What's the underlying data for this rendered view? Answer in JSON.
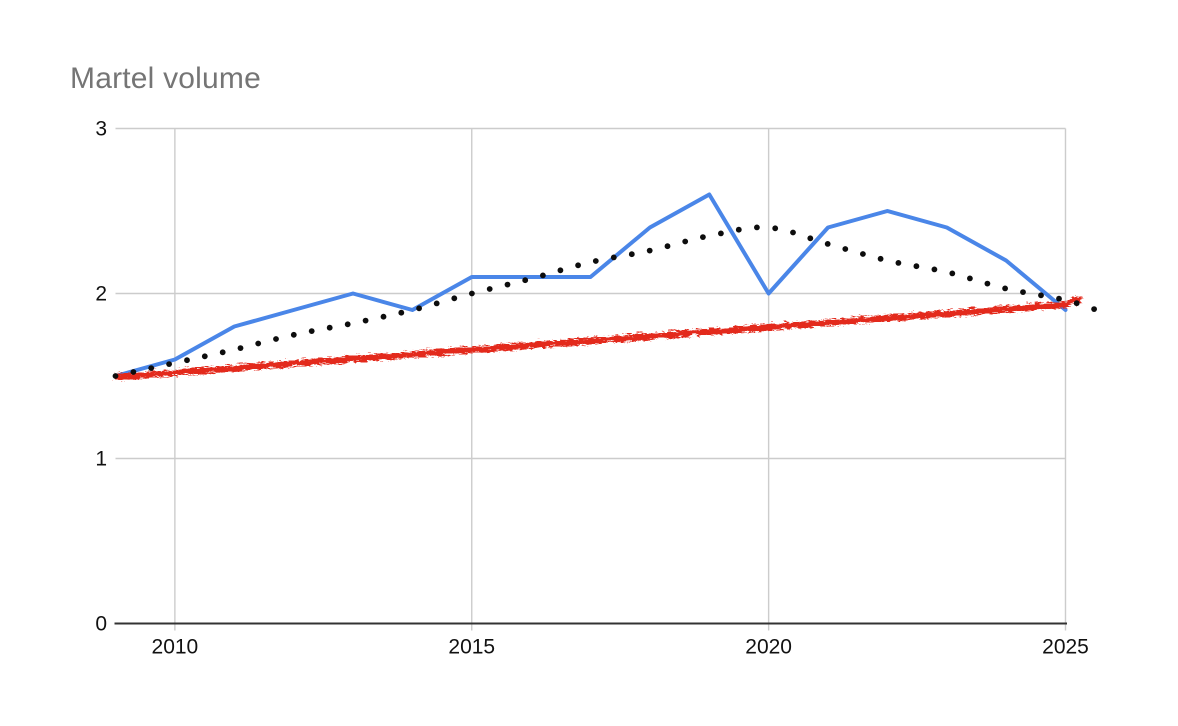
{
  "page": {
    "background": "#ffffff"
  },
  "chart_data": {
    "type": "line",
    "title": "Martel volume",
    "title_color": "#757575",
    "xlabel": "",
    "ylabel": "",
    "x": [
      2009,
      2010,
      2011,
      2012,
      2013,
      2014,
      2015,
      2016,
      2017,
      2018,
      2019,
      2020,
      2021,
      2022,
      2023,
      2024,
      2025
    ],
    "series": [
      {
        "name": "volume",
        "style": "solid",
        "color": "#4a86e8",
        "values": [
          1.5,
          1.6,
          1.8,
          1.9,
          2.0,
          1.9,
          2.1,
          2.1,
          2.1,
          2.4,
          2.6,
          2.0,
          2.4,
          2.5,
          2.4,
          2.2,
          1.9
        ]
      },
      {
        "name": "linear-trend-marker",
        "style": "rough-marker",
        "color": "#e3291d",
        "points": [
          [
            2009,
            1.5
          ],
          [
            2025.0,
            1.94
          ],
          [
            2025.2,
            1.97
          ]
        ]
      },
      {
        "name": "dotted-trend",
        "style": "dotted",
        "color": "#0d0d0d",
        "points": [
          [
            2009,
            1.5
          ],
          [
            2010,
            1.58
          ],
          [
            2011,
            1.66
          ],
          [
            2012,
            1.75
          ],
          [
            2013,
            1.82
          ],
          [
            2014,
            1.9
          ],
          [
            2015,
            2.0
          ],
          [
            2016,
            2.09
          ],
          [
            2017,
            2.19
          ],
          [
            2018,
            2.26
          ],
          [
            2019,
            2.35
          ],
          [
            2020,
            2.4
          ],
          [
            2021,
            2.3
          ],
          [
            2022,
            2.2
          ],
          [
            2023,
            2.13
          ],
          [
            2024,
            2.03
          ],
          [
            2025,
            1.96
          ],
          [
            2025.6,
            1.89
          ]
        ]
      }
    ],
    "x_ticks": [
      "2010",
      "2015",
      "2020",
      "2025"
    ],
    "x_tick_years": [
      2010,
      2015,
      2020,
      2025
    ],
    "y_ticks": [
      "0",
      "1",
      "2",
      "3"
    ],
    "y_tick_values": [
      0,
      1,
      2,
      3
    ],
    "xlim": [
      2009,
      2025
    ],
    "ylim": [
      0,
      3
    ],
    "grid": true,
    "legend": "none",
    "colors": {
      "gridline": "#cccccc",
      "axis_line": "#333333",
      "tick_label": "#111111"
    }
  }
}
